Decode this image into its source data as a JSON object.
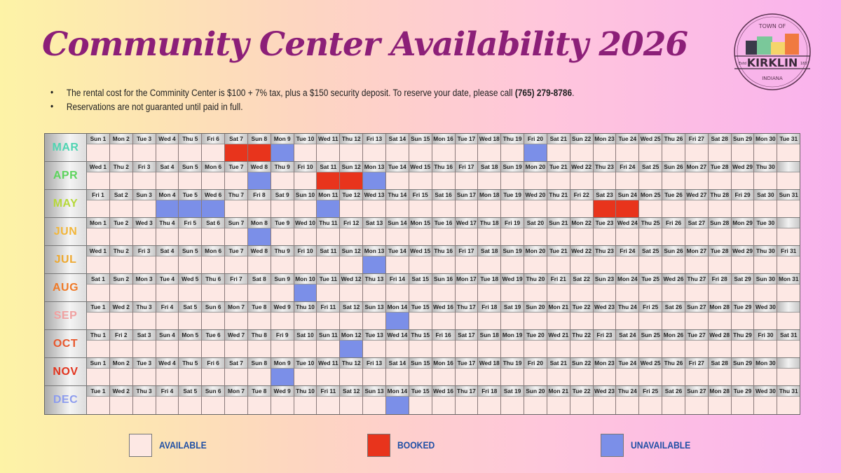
{
  "title": "Community Center Availability 2026",
  "logo": {
    "top": "TOWN OF",
    "name": "KIRKLIN",
    "bottom": "INDIANA",
    "left": "Estd",
    "right": "1837"
  },
  "notes": {
    "line1": "The rental cost for the Comminity Center is $100 + 7% tax, plus a $150 security deposit. To reserve your date, please call ",
    "phone": "(765) 279-8786",
    "line1_end": ".",
    "line2": "Reservations are not guaranted until paid in full."
  },
  "colors": {
    "available": "#fde8e4",
    "booked": "#e8341c",
    "unavailable": "#7b8fe8"
  },
  "legend": [
    {
      "label": "AVAILABLE",
      "status": "available"
    },
    {
      "label": "BOOKED",
      "status": "booked"
    },
    {
      "label": "UNAVAILABLE",
      "status": "unavailable"
    }
  ],
  "months": [
    {
      "name": "MAR",
      "color": "#4fd4b2",
      "booked": [
        7,
        8
      ],
      "unavailable": [
        9,
        20
      ],
      "days": [
        "Sun 1",
        "Mon 2",
        "Tue 3",
        "Wed 4",
        "Thu 5",
        "Fri 6",
        "Sat 7",
        "Sun 8",
        "Mon 9",
        "Tue 10",
        "Wed 11",
        "Thu 12",
        "Fri 13",
        "Sat 14",
        "Sun 15",
        "Mon 16",
        "Tue 17",
        "Wed 18",
        "Thu 19",
        "Fri 20",
        "Sat 21",
        "Sun 22",
        "Mon 23",
        "Tue 24",
        "Wed 25",
        "Thu 26",
        "Fri 27",
        "Sat 28",
        "Sun 29",
        "Mon 30",
        "Tue 31"
      ]
    },
    {
      "name": "APR",
      "color": "#5cd45c",
      "booked": [
        11,
        12
      ],
      "unavailable": [
        8,
        13
      ],
      "days": [
        "Wed 1",
        "Thu 2",
        "Fri 3",
        "Sat 4",
        "Sun 5",
        "Mon 6",
        "Tue 7",
        "Wed 8",
        "Thu 9",
        "Fri 10",
        "Sat 11",
        "Sun 12",
        "Mon 13",
        "Tue 14",
        "Wed 15",
        "Thu 16",
        "Fri 17",
        "Sat 18",
        "Sun 19",
        "Mon 20",
        "Tue 21",
        "Wed 22",
        "Thu 23",
        "Fri 24",
        "Sat 25",
        "Sun 26",
        "Mon 27",
        "Tue 28",
        "Wed 29",
        "Thu 30"
      ]
    },
    {
      "name": "MAY",
      "color": "#b6d83a",
      "booked": [
        23,
        24
      ],
      "unavailable": [
        4,
        5,
        6,
        11
      ],
      "days": [
        "Fri 1",
        "Sat 2",
        "Sun 3",
        "Mon 4",
        "Tue 5",
        "Wed 6",
        "Thu 7",
        "Fri 8",
        "Sat 9",
        "Sun 10",
        "Mon 11",
        "Tue 12",
        "Wed 13",
        "Thu 14",
        "Fri 15",
        "Sat 16",
        "Sun 17",
        "Mon 18",
        "Tue 19",
        "Wed 20",
        "Thu 21",
        "Fri 22",
        "Sat 23",
        "Sun 24",
        "Mon 25",
        "Tue 26",
        "Wed 27",
        "Thu 28",
        "Fri 29",
        "Sat 30",
        "Sun 31"
      ]
    },
    {
      "name": "JUN",
      "color": "#f2b63a",
      "booked": [],
      "unavailable": [
        8
      ],
      "days": [
        "Mon 1",
        "Tue 2",
        "Wed 3",
        "Thu 4",
        "Fri 5",
        "Sat 6",
        "Sun 7",
        "Mon 8",
        "Tue 9",
        "Wed 10",
        "Thu 11",
        "Fri 12",
        "Sat 13",
        "Sun 14",
        "Mon 15",
        "Tue 16",
        "Wed 17",
        "Thu 18",
        "Fri 19",
        "Sat 20",
        "Sun 21",
        "Mon 22",
        "Tue 23",
        "Wed 24",
        "Thu 25",
        "Fri 26",
        "Sat 27",
        "Sun 28",
        "Mon 29",
        "Tue 30"
      ]
    },
    {
      "name": "JUL",
      "color": "#eea82e",
      "booked": [],
      "unavailable": [
        13
      ],
      "days": [
        "Wed 1",
        "Thu 2",
        "Fri 3",
        "Sat 4",
        "Sun 5",
        "Mon 6",
        "Tue 7",
        "Wed 8",
        "Thu 9",
        "Fri 10",
        "Sat 11",
        "Sun 12",
        "Mon 13",
        "Tue 14",
        "Wed 15",
        "Thu 16",
        "Fri 17",
        "Sat 18",
        "Sun 19",
        "Mon 20",
        "Tue 21",
        "Wed 22",
        "Thu 23",
        "Fri 24",
        "Sat 25",
        "Sun 26",
        "Mon 27",
        "Tue 28",
        "Wed 29",
        "Thu 30",
        "Fri 31"
      ]
    },
    {
      "name": "AUG",
      "color": "#ef7a28",
      "booked": [],
      "unavailable": [
        10
      ],
      "days": [
        "Sat 1",
        "Sun 2",
        "Mon 3",
        "Tue 4",
        "Wed 5",
        "Thu 6",
        "Fri 7",
        "Sat 8",
        "Sun 9",
        "Mon 10",
        "Tue 11",
        "Wed 12",
        "Thu 13",
        "Fri 14",
        "Sat 15",
        "Sun 16",
        "Mon 17",
        "Tue 18",
        "Wed 19",
        "Thu 20",
        "Fri 21",
        "Sat 22",
        "Sun 23",
        "Mon 24",
        "Tue 25",
        "Wed 26",
        "Thu 27",
        "Fri 28",
        "Sat 29",
        "Sun 30",
        "Mon 31"
      ]
    },
    {
      "name": "SEP",
      "color": "#f0a0a0",
      "booked": [],
      "unavailable": [
        14
      ],
      "days": [
        "Tue 1",
        "Wed 2",
        "Thu 3",
        "Fri 4",
        "Sat 5",
        "Sun 6",
        "Mon 7",
        "Tue 8",
        "Wed 9",
        "Thu 10",
        "Fri 11",
        "Sat 12",
        "Sun 13",
        "Mon 14",
        "Tue 15",
        "Wed 16",
        "Thu 17",
        "Fri 18",
        "Sat 19",
        "Sun 20",
        "Mon 21",
        "Tue 22",
        "Wed 23",
        "Thu 24",
        "Fri 25",
        "Sat 26",
        "Sun 27",
        "Mon 28",
        "Tue 29",
        "Wed 30"
      ]
    },
    {
      "name": "OCT",
      "color": "#e8582e",
      "booked": [],
      "unavailable": [
        12
      ],
      "days": [
        "Thu 1",
        "Fri 2",
        "Sat 3",
        "Sun 4",
        "Mon 5",
        "Tue 6",
        "Wed 7",
        "Thu 8",
        "Fri 9",
        "Sat 10",
        "Sun 11",
        "Mon 12",
        "Tue 13",
        "Wed 14",
        "Thu 15",
        "Fri 16",
        "Sat 17",
        "Sun 18",
        "Mon 19",
        "Tue 20",
        "Wed 21",
        "Thu 22",
        "Fri 23",
        "Sat 24",
        "Sun 25",
        "Mon 26",
        "Tue 27",
        "Wed 28",
        "Thu 29",
        "Fri 30",
        "Sat 31"
      ]
    },
    {
      "name": "NOV",
      "color": "#e2341e",
      "booked": [],
      "unavailable": [
        9
      ],
      "days": [
        "Sun 1",
        "Mon 2",
        "Tue 3",
        "Wed 4",
        "Thu 5",
        "Fri 6",
        "Sat 7",
        "Sun 8",
        "Mon 9",
        "Tue 10",
        "Wed 11",
        "Thu 12",
        "Fri 13",
        "Sat 14",
        "Sun 15",
        "Mon 16",
        "Tue 17",
        "Wed 18",
        "Thu 19",
        "Fri 20",
        "Sat 21",
        "Sun 22",
        "Mon 23",
        "Tue 24",
        "Wed 25",
        "Thu 26",
        "Fri 27",
        "Sat 28",
        "Sun 29",
        "Mon 30"
      ]
    },
    {
      "name": "DEC",
      "color": "#8c9cee",
      "booked": [],
      "unavailable": [
        14
      ],
      "days": [
        "Tue 1",
        "Wed 2",
        "Thu 3",
        "Fri 4",
        "Sat 5",
        "Sun 6",
        "Mon 7",
        "Tue 8",
        "Wed 9",
        "Thu 10",
        "Fri 11",
        "Sat 12",
        "Sun 13",
        "Mon 14",
        "Tue 15",
        "Wed 16",
        "Thu 17",
        "Fri 18",
        "Sat 19",
        "Sun 20",
        "Mon 21",
        "Tue 22",
        "Wed 23",
        "Thu 24",
        "Fri 25",
        "Sat 26",
        "Sun 27",
        "Mon 28",
        "Tue 29",
        "Wed 30",
        "Thu 31"
      ]
    }
  ]
}
